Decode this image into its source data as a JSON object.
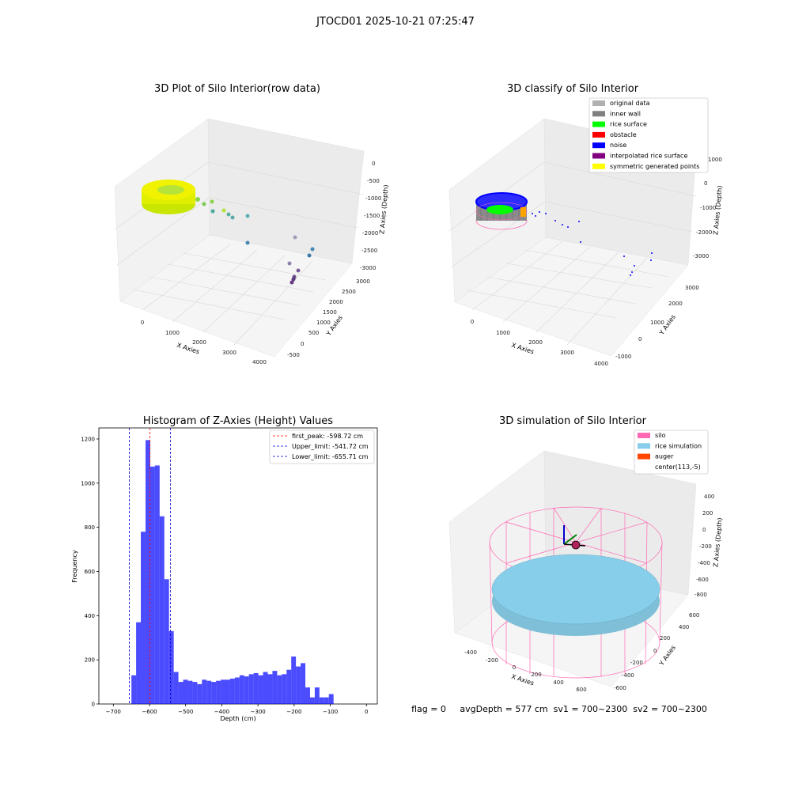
{
  "page": {
    "suptitle": "JTOCD01 2025-10-21 07:25:47",
    "status_line": "flag = 0     avgDepth = 577 cm  sv1 = 700~2300  sv2 = 700~2300"
  },
  "panels": {
    "raw": {
      "title": "3D Plot of Silo Interior(row data)",
      "xlabel": "X Axies",
      "ylabel": "Y Axies",
      "zlabel": "Z Axies (Depth)",
      "xticks": [
        "0",
        "1000",
        "2000",
        "3000",
        "4000"
      ],
      "yticks": [
        "-500",
        "0",
        "500",
        "1000",
        "1500",
        "2000",
        "2500",
        "3000"
      ],
      "zticks": [
        "0",
        "-500",
        "-1000",
        "-1500",
        "-2000",
        "-2500",
        "-3000"
      ]
    },
    "classify": {
      "title": "3D classify of Silo Interior",
      "xlabel": "X Axies",
      "ylabel": "Y Axies",
      "zlabel": "Z Axies (Depth)",
      "xticks": [
        "0",
        "1000",
        "2000",
        "3000",
        "4000"
      ],
      "yticks": [
        "-1000",
        "0",
        "1000",
        "2000",
        "3000"
      ],
      "zticks": [
        "1000",
        "0",
        "-1000",
        "-2000",
        "-3000"
      ],
      "legend": [
        {
          "label": "original data",
          "color": "#b0b0b0"
        },
        {
          "label": "inner wall",
          "color": "#808080"
        },
        {
          "label": "rice surface",
          "color": "#00ff00"
        },
        {
          "label": "obstacle",
          "color": "#ff0000"
        },
        {
          "label": "noise",
          "color": "#0000ff"
        },
        {
          "label": "interpolated rice surface",
          "color": "#800080"
        },
        {
          "label": "symmetric generated points",
          "color": "#ffff00"
        }
      ]
    },
    "simulation": {
      "title": "3D simulation of Silo Interior",
      "xlabel": "X Axies",
      "ylabel": "Y Axies",
      "zlabel": "Z Axies (Depth)",
      "xticks": [
        "-400",
        "-200",
        "0",
        "200",
        "400",
        "600"
      ],
      "yticks": [
        "-600",
        "-400",
        "-200",
        "0",
        "200",
        "400",
        "600"
      ],
      "zticks": [
        "400",
        "200",
        "0",
        "-200",
        "-400",
        "-600",
        "-800"
      ],
      "legend": [
        {
          "label": "silo",
          "color": "#ff69b4"
        },
        {
          "label": "rice simulation",
          "color": "#87ceeb"
        },
        {
          "label": "auger",
          "color": "#ff4500"
        },
        {
          "label": "center(113,-5)",
          "color": ""
        }
      ]
    }
  },
  "chart_data": [
    {
      "type": "bar",
      "title": "Histogram of Z-Axies (Height) Values",
      "xlabel": "Depth (cm)",
      "ylabel": "Frequency",
      "xlim": [
        -740,
        30
      ],
      "ylim": [
        0,
        1250
      ],
      "xticks": [
        -700,
        -600,
        -500,
        -400,
        -300,
        -200,
        -100,
        0
      ],
      "yticks": [
        0,
        200,
        400,
        600,
        800,
        1000,
        1200
      ],
      "bin_start": -650,
      "bin_width": 13,
      "values": [
        130,
        370,
        780,
        1195,
        1075,
        1080,
        850,
        565,
        330,
        145,
        100,
        110,
        105,
        100,
        90,
        110,
        105,
        100,
        105,
        110,
        110,
        115,
        120,
        130,
        125,
        135,
        140,
        130,
        145,
        135,
        150,
        130,
        135,
        155,
        215,
        170,
        185,
        75,
        30,
        75,
        30,
        30,
        45
      ],
      "bar_color": "#0000ff",
      "lines": [
        {
          "label": "first_peak: -598.72 cm",
          "value": -598.72,
          "color": "#ff0000"
        },
        {
          "label": "Upper_limit: -541.72 cm",
          "value": -541.72,
          "color": "#0000cc"
        },
        {
          "label": "Lower_limit: -655.71 cm",
          "value": -655.71,
          "color": "#0000cc"
        }
      ],
      "legend_position": "top-right"
    }
  ]
}
